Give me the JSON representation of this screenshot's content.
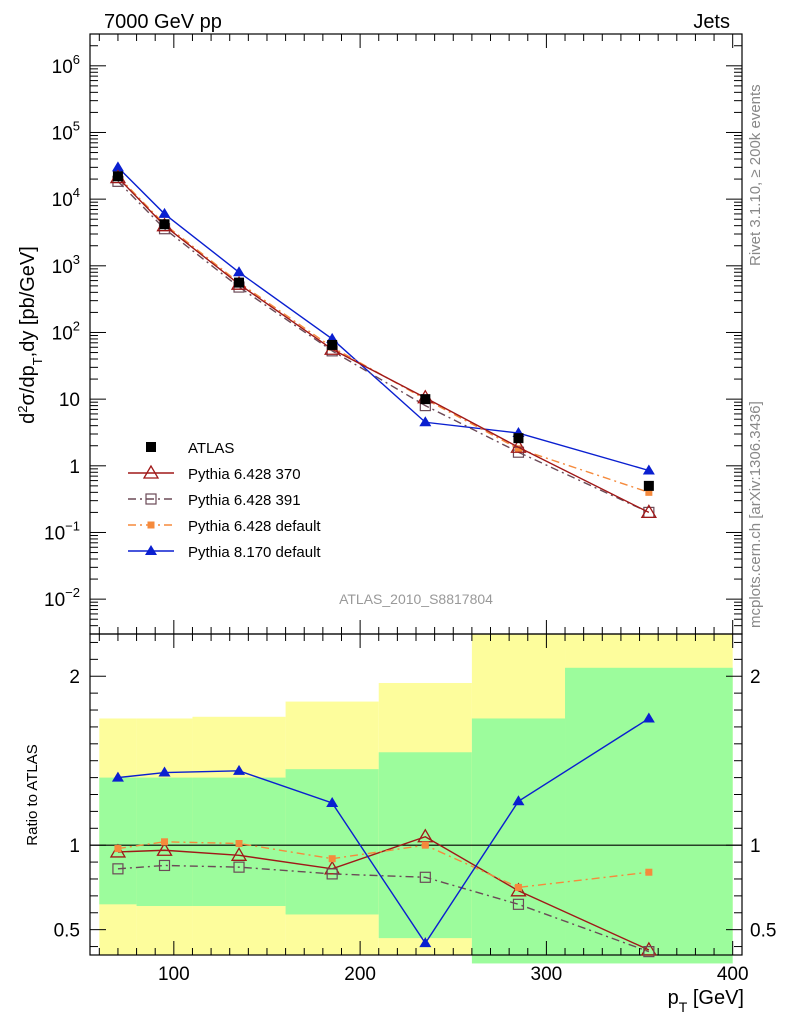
{
  "header": {
    "left": "7000 GeV pp",
    "right": "Jets"
  },
  "side_labels": {
    "top": "Rivet 3.1.10, ≥ 200k events",
    "bottom": "mcplots.cern.ch [arXiv:1306.3436]"
  },
  "analysis_id": "ATLAS_2010_S8817804",
  "colors": {
    "atlas": "#000000",
    "p370": "#a01818",
    "p391": "#6b4a57",
    "p6def": "#f58a3c",
    "p8def": "#0a1fd0",
    "band_in": "#9cfc9c",
    "band_out": "#fdfd9c"
  },
  "chart_data": [
    {
      "type": "line",
      "panel": "main",
      "ylabel": "d²σ/dp_T,dy [pb/GeV]",
      "yscale": "log",
      "ylim": [
        0.003,
        3000000
      ],
      "xlim": [
        55,
        405
      ],
      "yticks": [
        {
          "v": 0.01,
          "base": "10",
          "exp": "−2"
        },
        {
          "v": 0.1,
          "base": "10",
          "exp": "−1"
        },
        {
          "v": 1,
          "base": "1",
          "exp": ""
        },
        {
          "v": 10,
          "base": "10",
          "exp": ""
        },
        {
          "v": 100,
          "base": "10",
          "exp": "2"
        },
        {
          "v": 1000,
          "base": "10",
          "exp": "3"
        },
        {
          "v": 10000,
          "base": "10",
          "exp": "4"
        },
        {
          "v": 100000,
          "base": "10",
          "exp": "5"
        },
        {
          "v": 1000000,
          "base": "10",
          "exp": "6"
        }
      ],
      "x": [
        70,
        95,
        135,
        185,
        235,
        285,
        355
      ],
      "series": [
        {
          "name": "ATLAS",
          "key": "atlas",
          "values": [
            22000,
            4200,
            560,
            65,
            10,
            2.6,
            0.5
          ]
        },
        {
          "name": "Pythia 6.428 370",
          "key": "p370",
          "values": [
            21000,
            4000,
            530,
            56,
            10.5,
            1.9,
            0.2
          ]
        },
        {
          "name": "Pythia 6.428 391",
          "key": "p391",
          "values": [
            18500,
            3600,
            480,
            53,
            8,
            1.6,
            0.2
          ]
        },
        {
          "name": "Pythia 6.428 default",
          "key": "p6def",
          "values": [
            22000,
            4200,
            560,
            60,
            10,
            1.8,
            0.4
          ]
        },
        {
          "name": "Pythia 8.170 default",
          "key": "p8def",
          "values": [
            30000,
            6000,
            800,
            80,
            4.5,
            3.1,
            0.85
          ]
        }
      ]
    },
    {
      "type": "line",
      "panel": "ratio",
      "xlabel": "p_T [GeV]",
      "ylabel": "Ratio to ATLAS",
      "ylim": [
        0.35,
        2.25
      ],
      "xlim": [
        55,
        405
      ],
      "xticks": [
        100,
        200,
        300,
        400
      ],
      "yticks": [
        0.5,
        1,
        2
      ],
      "x": [
        70,
        95,
        135,
        185,
        235,
        285,
        355
      ],
      "bins": [
        [
          60,
          80
        ],
        [
          80,
          110
        ],
        [
          110,
          160
        ],
        [
          160,
          210
        ],
        [
          210,
          260
        ],
        [
          260,
          310
        ],
        [
          310,
          400
        ]
      ],
      "band_inner": [
        [
          0.65,
          1.4
        ],
        [
          0.64,
          1.4
        ],
        [
          0.64,
          1.4
        ],
        [
          0.59,
          1.45
        ],
        [
          0.45,
          1.55
        ],
        [
          0.3,
          1.75
        ],
        [
          0.3,
          2.05
        ]
      ],
      "band_outer": [
        [
          0.35,
          1.75
        ],
        [
          0.35,
          1.75
        ],
        [
          0.35,
          1.76
        ],
        [
          0.35,
          1.85
        ],
        [
          0.35,
          1.96
        ],
        [
          0.35,
          2.25
        ],
        [
          0.35,
          2.25
        ]
      ],
      "series": [
        {
          "name": "Pythia 6.428 370",
          "key": "p370",
          "values": [
            0.96,
            0.97,
            0.94,
            0.86,
            1.05,
            0.73,
            0.38
          ]
        },
        {
          "name": "Pythia 6.428 391",
          "key": "p391",
          "values": [
            0.86,
            0.88,
            0.87,
            0.83,
            0.81,
            0.65,
            0.37
          ]
        },
        {
          "name": "Pythia 6.428 default",
          "key": "p6def",
          "values": [
            0.98,
            1.02,
            1.01,
            0.92,
            1.0,
            0.75,
            0.84
          ]
        },
        {
          "name": "Pythia 8.170 default",
          "key": "p8def",
          "values": [
            1.4,
            1.43,
            1.44,
            1.25,
            0.42,
            1.26,
            1.75
          ]
        }
      ]
    }
  ]
}
